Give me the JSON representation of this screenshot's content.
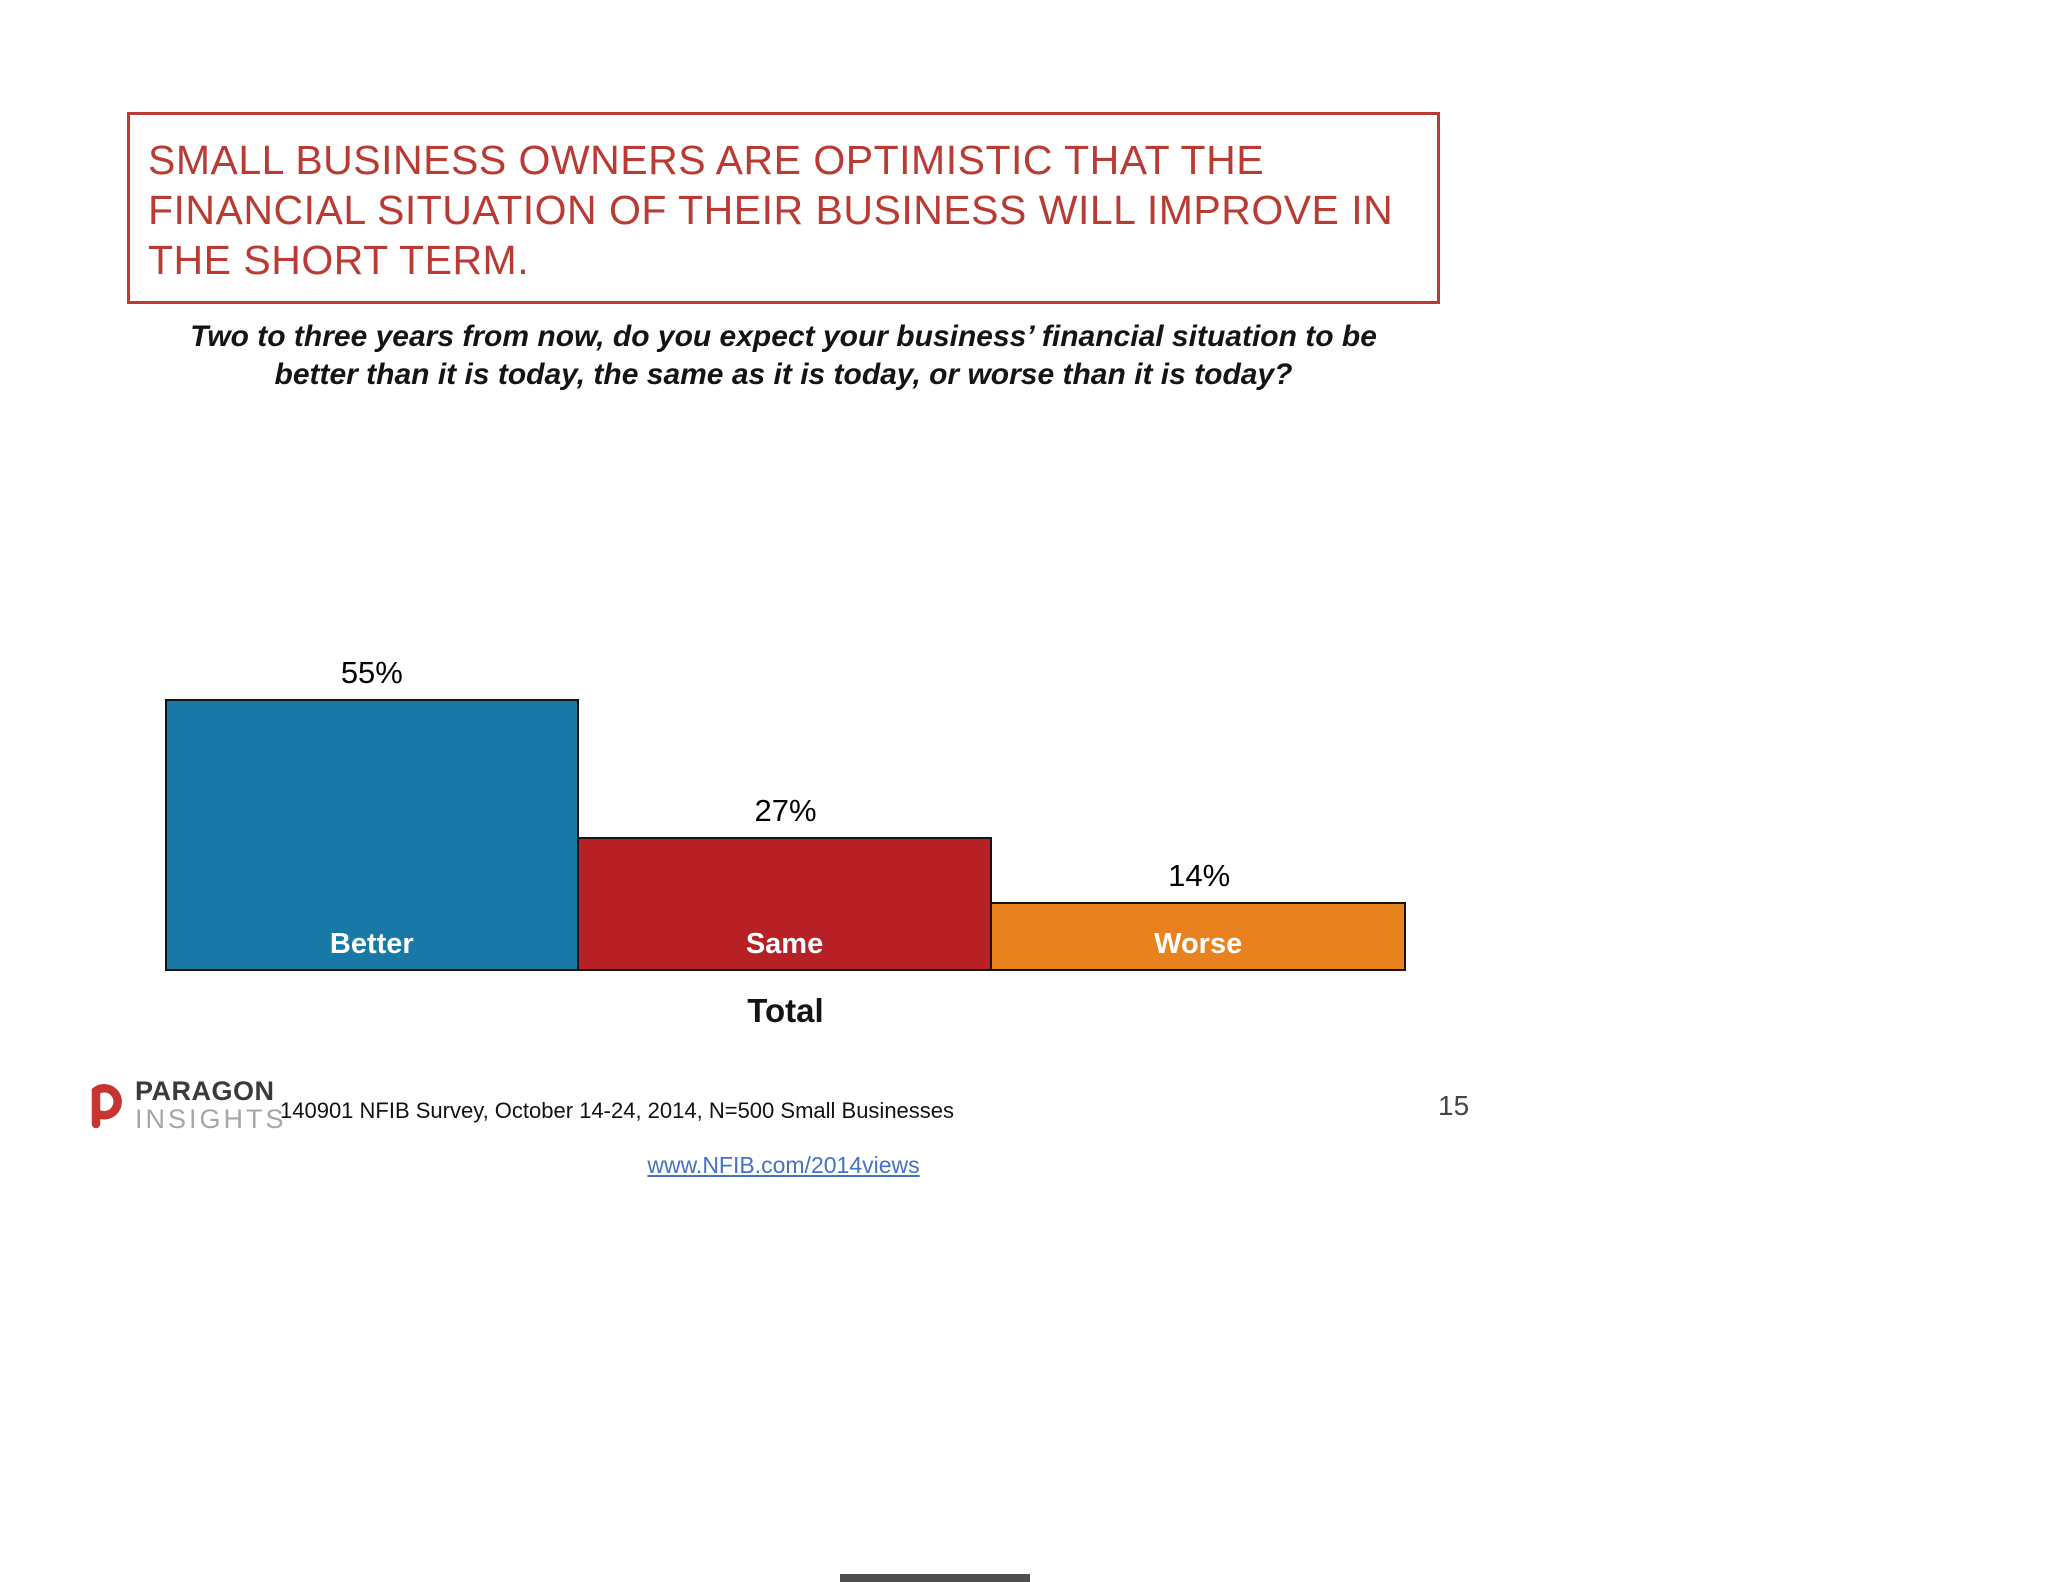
{
  "slide": {
    "title": {
      "full": "SMALL BUSINESS OWNERS ARE OPTIMISTIC THAT THE FINANCIAL SITUATION OF THEIR BUSINESS WILL IMPROVE IN THE SHORT TERM.",
      "lines": [
        "SMALL BUSINESS OWNERS ARE OPTIMISTIC THAT THE",
        "FINANCIAL SITUATION OF THEIR BUSINESS WILL IMPROVE IN",
        "THE SHORT TERM."
      ],
      "color": "#B93B33"
    },
    "subtitle": {
      "full": "Two to three years from now, do you expect your business’ financial situation to be better than it is today, the same as it is today, or worse than it is today?",
      "lines": [
        "Two to three years from now, do you expect your business’ financial situation to be",
        "better than it is today, the same as it is today, or worse than it is today?"
      ]
    },
    "footer": {
      "logo": {
        "icon": "paragon-p-icon",
        "name_top": "PARAGON",
        "name_bottom": "INSIGHTS",
        "accent_color": "#C63531"
      },
      "note": "140901 NFIB Survey, October 14-24, 2014, N=500 Small Businesses",
      "page_number": "15",
      "link": "www.NFIB.com/2014views",
      "link_color": "#4472C4"
    }
  },
  "chart_data": {
    "type": "bar",
    "categories": [
      "Better",
      "Same",
      "Worse"
    ],
    "values": [
      55,
      27,
      14
    ],
    "value_labels": [
      "55%",
      "27%",
      "14%"
    ],
    "colors": [
      "#1879A6",
      "#B72025",
      "#E8821E"
    ],
    "title": "",
    "xlabel": "Total",
    "ylabel": "",
    "ylim": [
      0,
      60
    ],
    "grid": false,
    "legend": "none",
    "bar_label_position": "inside-bottom",
    "value_label_position": "above"
  }
}
